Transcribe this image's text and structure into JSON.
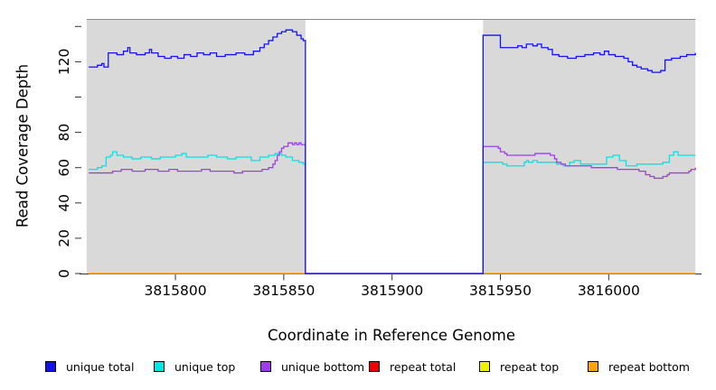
{
  "chart_data": {
    "type": "line",
    "title": "",
    "xlabel": "Coordinate in Reference Genome",
    "ylabel": "Read Coverage Depth",
    "xlim": [
      3815757,
      3816042
    ],
    "ylim": [
      0,
      144
    ],
    "grid": false,
    "panel_bg": "#D9D9D9",
    "panel_x_range": [
      3815759,
      3816040
    ],
    "gap_region": {
      "x_start": 3815860,
      "x_end": 3815942,
      "fill": "#FFFFFF"
    },
    "x_ticks": [
      {
        "v": 3815800,
        "label": "3815800"
      },
      {
        "v": 3815850,
        "label": "3815850"
      },
      {
        "v": 3815900,
        "label": "3815900"
      },
      {
        "v": 3815950,
        "label": "3815950"
      },
      {
        "v": 3816000,
        "label": "3816000"
      }
    ],
    "y_ticks": [
      {
        "v": 0,
        "label": "0"
      },
      {
        "v": 20,
        "label": "20"
      },
      {
        "v": 40,
        "label": "40"
      },
      {
        "v": 60,
        "label": "60"
      },
      {
        "v": 80,
        "label": "80"
      },
      {
        "v": 100,
        "label": ""
      },
      {
        "v": 120,
        "label": "120"
      },
      {
        "v": 140,
        "label": ""
      }
    ],
    "draw_order": [
      "repeat total",
      "repeat top",
      "repeat bottom",
      "unique top",
      "unique bottom",
      "unique total"
    ],
    "legend": [
      {
        "label": "unique total",
        "color": "#1414E6"
      },
      {
        "label": "unique top",
        "color": "#00E6E6"
      },
      {
        "label": "unique bottom",
        "color": "#A23CE8"
      },
      {
        "label": "repeat total",
        "color": "#EE0000"
      },
      {
        "label": "repeat top",
        "color": "#F2F200"
      },
      {
        "label": "repeat bottom",
        "color": "#FFA500"
      }
    ],
    "series": [
      {
        "name": "unique total",
        "color": "#1414E6",
        "points": [
          [
            3815760,
            117
          ],
          [
            3815764,
            118
          ],
          [
            3815766,
            119
          ],
          [
            3815767,
            117
          ],
          [
            3815769,
            125
          ],
          [
            3815773,
            124
          ],
          [
            3815776,
            126
          ],
          [
            3815778,
            128
          ],
          [
            3815779,
            125
          ],
          [
            3815782,
            124
          ],
          [
            3815786,
            125
          ],
          [
            3815788,
            127
          ],
          [
            3815789,
            125
          ],
          [
            3815792,
            123
          ],
          [
            3815795,
            122
          ],
          [
            3815798,
            123
          ],
          [
            3815801,
            122
          ],
          [
            3815804,
            124
          ],
          [
            3815807,
            123
          ],
          [
            3815810,
            125
          ],
          [
            3815813,
            124
          ],
          [
            3815816,
            125
          ],
          [
            3815819,
            123
          ],
          [
            3815823,
            124
          ],
          [
            3815828,
            125
          ],
          [
            3815832,
            124
          ],
          [
            3815836,
            126
          ],
          [
            3815839,
            128
          ],
          [
            3815841,
            130
          ],
          [
            3815843,
            132
          ],
          [
            3815845,
            134
          ],
          [
            3815847,
            136
          ],
          [
            3815849,
            137
          ],
          [
            3815851,
            138
          ],
          [
            3815854,
            137
          ],
          [
            3815856,
            135
          ],
          [
            3815858,
            133
          ],
          [
            3815859,
            132
          ],
          [
            3815860,
            0
          ],
          [
            3815941,
            0
          ],
          [
            3815942,
            135
          ],
          [
            3815949,
            135
          ],
          [
            3815950,
            128
          ],
          [
            3815955,
            128
          ],
          [
            3815958,
            129
          ],
          [
            3815960,
            128
          ],
          [
            3815962,
            130
          ],
          [
            3815965,
            129
          ],
          [
            3815967,
            130
          ],
          [
            3815969,
            128
          ],
          [
            3815972,
            127
          ],
          [
            3815974,
            124
          ],
          [
            3815977,
            123
          ],
          [
            3815981,
            122
          ],
          [
            3815985,
            123
          ],
          [
            3815989,
            124
          ],
          [
            3815993,
            125
          ],
          [
            3815996,
            124
          ],
          [
            3815998,
            126
          ],
          [
            3816000,
            124
          ],
          [
            3816003,
            123
          ],
          [
            3816007,
            122
          ],
          [
            3816009,
            120
          ],
          [
            3816011,
            118
          ],
          [
            3816013,
            117
          ],
          [
            3816015,
            116
          ],
          [
            3816018,
            115
          ],
          [
            3816020,
            114
          ],
          [
            3816024,
            115
          ],
          [
            3816026,
            121
          ],
          [
            3816029,
            122
          ],
          [
            3816033,
            123
          ],
          [
            3816036,
            124
          ],
          [
            3816040,
            125
          ]
        ]
      },
      {
        "name": "unique top",
        "color": "#00E6E6",
        "points": [
          [
            3815760,
            59
          ],
          [
            3815764,
            60
          ],
          [
            3815766,
            61
          ],
          [
            3815768,
            66
          ],
          [
            3815770,
            67
          ],
          [
            3815771,
            69
          ],
          [
            3815773,
            67
          ],
          [
            3815776,
            66
          ],
          [
            3815780,
            65
          ],
          [
            3815784,
            66
          ],
          [
            3815789,
            65
          ],
          [
            3815793,
            66
          ],
          [
            3815800,
            67
          ],
          [
            3815803,
            68
          ],
          [
            3815805,
            66
          ],
          [
            3815811,
            66
          ],
          [
            3815815,
            67
          ],
          [
            3815819,
            66
          ],
          [
            3815824,
            65
          ],
          [
            3815828,
            66
          ],
          [
            3815835,
            64
          ],
          [
            3815839,
            66
          ],
          [
            3815843,
            67
          ],
          [
            3815846,
            68
          ],
          [
            3815849,
            67
          ],
          [
            3815851,
            66
          ],
          [
            3815854,
            64
          ],
          [
            3815857,
            63
          ],
          [
            3815859,
            62
          ],
          [
            3815860,
            0
          ],
          [
            3815941,
            0
          ],
          [
            3815942,
            63
          ],
          [
            3815949,
            63
          ],
          [
            3815951,
            62
          ],
          [
            3815953,
            61
          ],
          [
            3815959,
            61
          ],
          [
            3815961,
            63
          ],
          [
            3815962,
            64
          ],
          [
            3815963,
            63
          ],
          [
            3815965,
            64
          ],
          [
            3815967,
            63
          ],
          [
            3815973,
            63
          ],
          [
            3815976,
            62
          ],
          [
            3815979,
            61
          ],
          [
            3815982,
            63
          ],
          [
            3815984,
            64
          ],
          [
            3815987,
            62
          ],
          [
            3815997,
            62
          ],
          [
            3815999,
            66
          ],
          [
            3816002,
            67
          ],
          [
            3816005,
            64
          ],
          [
            3816008,
            61
          ],
          [
            3816013,
            62
          ],
          [
            3816021,
            62
          ],
          [
            3816025,
            63
          ],
          [
            3816028,
            67
          ],
          [
            3816030,
            69
          ],
          [
            3816032,
            67
          ],
          [
            3816040,
            67
          ]
        ]
      },
      {
        "name": "unique bottom",
        "color": "#A23CE8",
        "points": [
          [
            3815760,
            57
          ],
          [
            3815768,
            57
          ],
          [
            3815771,
            58
          ],
          [
            3815775,
            59
          ],
          [
            3815780,
            58
          ],
          [
            3815786,
            59
          ],
          [
            3815792,
            58
          ],
          [
            3815797,
            59
          ],
          [
            3815801,
            58
          ],
          [
            3815807,
            58
          ],
          [
            3815812,
            59
          ],
          [
            3815816,
            58
          ],
          [
            3815822,
            58
          ],
          [
            3815827,
            57
          ],
          [
            3815831,
            58
          ],
          [
            3815836,
            58
          ],
          [
            3815840,
            59
          ],
          [
            3815843,
            60
          ],
          [
            3815845,
            62
          ],
          [
            3815846,
            64
          ],
          [
            3815847,
            67
          ],
          [
            3815848,
            69
          ],
          [
            3815849,
            71
          ],
          [
            3815850,
            72
          ],
          [
            3815852,
            74
          ],
          [
            3815854,
            73
          ],
          [
            3815855,
            74
          ],
          [
            3815856,
            73
          ],
          [
            3815857,
            74
          ],
          [
            3815858,
            73
          ],
          [
            3815859,
            73
          ],
          [
            3815860,
            0
          ],
          [
            3815941,
            0
          ],
          [
            3815942,
            72
          ],
          [
            3815948,
            72
          ],
          [
            3815949,
            71
          ],
          [
            3815950,
            69
          ],
          [
            3815952,
            68
          ],
          [
            3815953,
            67
          ],
          [
            3815962,
            67
          ],
          [
            3815966,
            68
          ],
          [
            3815971,
            68
          ],
          [
            3815973,
            67
          ],
          [
            3815975,
            65
          ],
          [
            3815976,
            63
          ],
          [
            3815978,
            62
          ],
          [
            3815980,
            61
          ],
          [
            3815988,
            61
          ],
          [
            3815992,
            60
          ],
          [
            3816000,
            60
          ],
          [
            3816004,
            59
          ],
          [
            3816010,
            59
          ],
          [
            3816014,
            58
          ],
          [
            3816017,
            56
          ],
          [
            3816019,
            55
          ],
          [
            3816021,
            54
          ],
          [
            3816025,
            55
          ],
          [
            3816027,
            56
          ],
          [
            3816028,
            57
          ],
          [
            3816035,
            57
          ],
          [
            3816037,
            58
          ],
          [
            3816038,
            59
          ],
          [
            3816040,
            60
          ]
        ]
      },
      {
        "name": "repeat total",
        "color": "#EE0000",
        "points": [
          [
            3815760,
            0
          ],
          [
            3816040,
            0
          ]
        ]
      },
      {
        "name": "repeat top",
        "color": "#F2F200",
        "points": [
          [
            3815760,
            0
          ],
          [
            3816040,
            0
          ]
        ]
      },
      {
        "name": "repeat bottom",
        "color": "#FFA500",
        "points": [
          [
            3815760,
            0
          ],
          [
            3816040,
            0
          ]
        ]
      }
    ]
  }
}
